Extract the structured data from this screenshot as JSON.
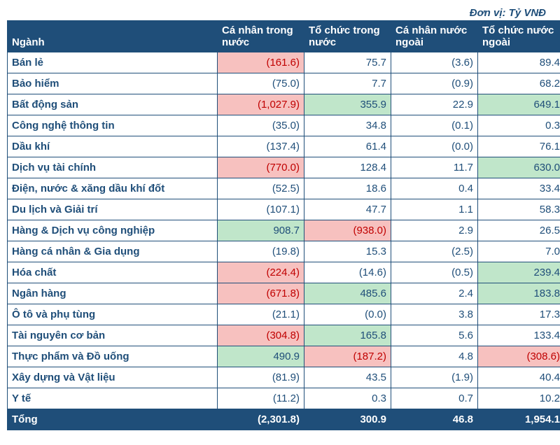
{
  "unit_label": "Đơn vị: Tỷ VNĐ",
  "colors": {
    "header_bg": "#1f4e79",
    "header_text": "#ffffff",
    "border": "#1f4e79",
    "sector_text": "#1f4e79",
    "value_text": "#1f4e79",
    "unit_text": "#1f4e79",
    "neg_highlight": "#f7c1bf",
    "pos_highlight": "#c0e6ca",
    "neg_text": "#c00000",
    "total_bg": "#1f4e79",
    "total_text": "#ffffff"
  },
  "columns": [
    {
      "label": "Ngành"
    },
    {
      "label": "Cá nhân trong nước"
    },
    {
      "label": "Tổ chức trong nước"
    },
    {
      "label": "Cá nhân nước ngoài"
    },
    {
      "label": "Tổ chức nước ngoài"
    }
  ],
  "rows": [
    {
      "sector": "Bán lẻ",
      "cells": [
        {
          "t": "(161.6)",
          "hl": "neg"
        },
        {
          "t": "75.7"
        },
        {
          "t": "(3.6)"
        },
        {
          "t": "89.4"
        }
      ]
    },
    {
      "sector": "Bảo hiểm",
      "cells": [
        {
          "t": "(75.0)"
        },
        {
          "t": "7.7"
        },
        {
          "t": "(0.9)"
        },
        {
          "t": "68.2"
        }
      ]
    },
    {
      "sector": "Bất động sản",
      "cells": [
        {
          "t": "(1,027.9)",
          "hl": "neg"
        },
        {
          "t": "355.9",
          "hl": "pos"
        },
        {
          "t": "22.9"
        },
        {
          "t": "649.1",
          "hl": "pos"
        }
      ]
    },
    {
      "sector": "Công nghệ thông tin",
      "cells": [
        {
          "t": "(35.0)"
        },
        {
          "t": "34.8"
        },
        {
          "t": "(0.1)"
        },
        {
          "t": "0.3"
        }
      ]
    },
    {
      "sector": "Dầu khí",
      "cells": [
        {
          "t": "(137.4)"
        },
        {
          "t": "61.4"
        },
        {
          "t": "(0.0)"
        },
        {
          "t": "76.1"
        }
      ]
    },
    {
      "sector": "Dịch vụ tài chính",
      "cells": [
        {
          "t": "(770.0)",
          "hl": "neg"
        },
        {
          "t": "128.4"
        },
        {
          "t": "11.7"
        },
        {
          "t": "630.0",
          "hl": "pos"
        }
      ]
    },
    {
      "sector": "Điện, nước & xăng dầu khí đốt",
      "cells": [
        {
          "t": "(52.5)"
        },
        {
          "t": "18.6"
        },
        {
          "t": "0.4"
        },
        {
          "t": "33.4"
        }
      ]
    },
    {
      "sector": "Du lịch và Giải trí",
      "cells": [
        {
          "t": "(107.1)"
        },
        {
          "t": "47.7"
        },
        {
          "t": "1.1"
        },
        {
          "t": "58.3"
        }
      ]
    },
    {
      "sector": "Hàng & Dịch vụ công nghiệp",
      "cells": [
        {
          "t": "908.7",
          "hl": "pos"
        },
        {
          "t": "(938.0)",
          "hl": "neg"
        },
        {
          "t": "2.9"
        },
        {
          "t": "26.5"
        }
      ]
    },
    {
      "sector": "Hàng cá nhân & Gia dụng",
      "cells": [
        {
          "t": "(19.8)"
        },
        {
          "t": "15.3"
        },
        {
          "t": "(2.5)"
        },
        {
          "t": "7.0"
        }
      ]
    },
    {
      "sector": "Hóa chất",
      "cells": [
        {
          "t": "(224.4)",
          "hl": "neg"
        },
        {
          "t": "(14.6)"
        },
        {
          "t": "(0.5)"
        },
        {
          "t": "239.4",
          "hl": "pos"
        }
      ]
    },
    {
      "sector": "Ngân hàng",
      "cells": [
        {
          "t": "(671.8)",
          "hl": "neg"
        },
        {
          "t": "485.6",
          "hl": "pos"
        },
        {
          "t": "2.4"
        },
        {
          "t": "183.8",
          "hl": "pos"
        }
      ]
    },
    {
      "sector": "Ô tô và phụ tùng",
      "cells": [
        {
          "t": "(21.1)"
        },
        {
          "t": "(0.0)"
        },
        {
          "t": "3.8"
        },
        {
          "t": "17.3"
        }
      ]
    },
    {
      "sector": "Tài nguyên cơ bản",
      "cells": [
        {
          "t": "(304.8)",
          "hl": "neg"
        },
        {
          "t": "165.8",
          "hl": "pos"
        },
        {
          "t": "5.6"
        },
        {
          "t": "133.4"
        }
      ]
    },
    {
      "sector": "Thực phẩm và Đồ uống",
      "cells": [
        {
          "t": "490.9",
          "hl": "pos"
        },
        {
          "t": "(187.2)",
          "hl": "neg"
        },
        {
          "t": "4.8"
        },
        {
          "t": "(308.6)",
          "hl": "neg"
        }
      ]
    },
    {
      "sector": "Xây dựng và Vật liệu",
      "cells": [
        {
          "t": "(81.9)"
        },
        {
          "t": "43.5"
        },
        {
          "t": "(1.9)"
        },
        {
          "t": "40.4"
        }
      ]
    },
    {
      "sector": "Y tế",
      "cells": [
        {
          "t": "(11.2)"
        },
        {
          "t": "0.3"
        },
        {
          "t": "0.7"
        },
        {
          "t": "10.2"
        }
      ]
    }
  ],
  "total": {
    "sector": "Tổng",
    "cells": [
      {
        "t": "(2,301.8)"
      },
      {
        "t": "300.9"
      },
      {
        "t": "46.8"
      },
      {
        "t": "1,954.1"
      }
    ]
  }
}
